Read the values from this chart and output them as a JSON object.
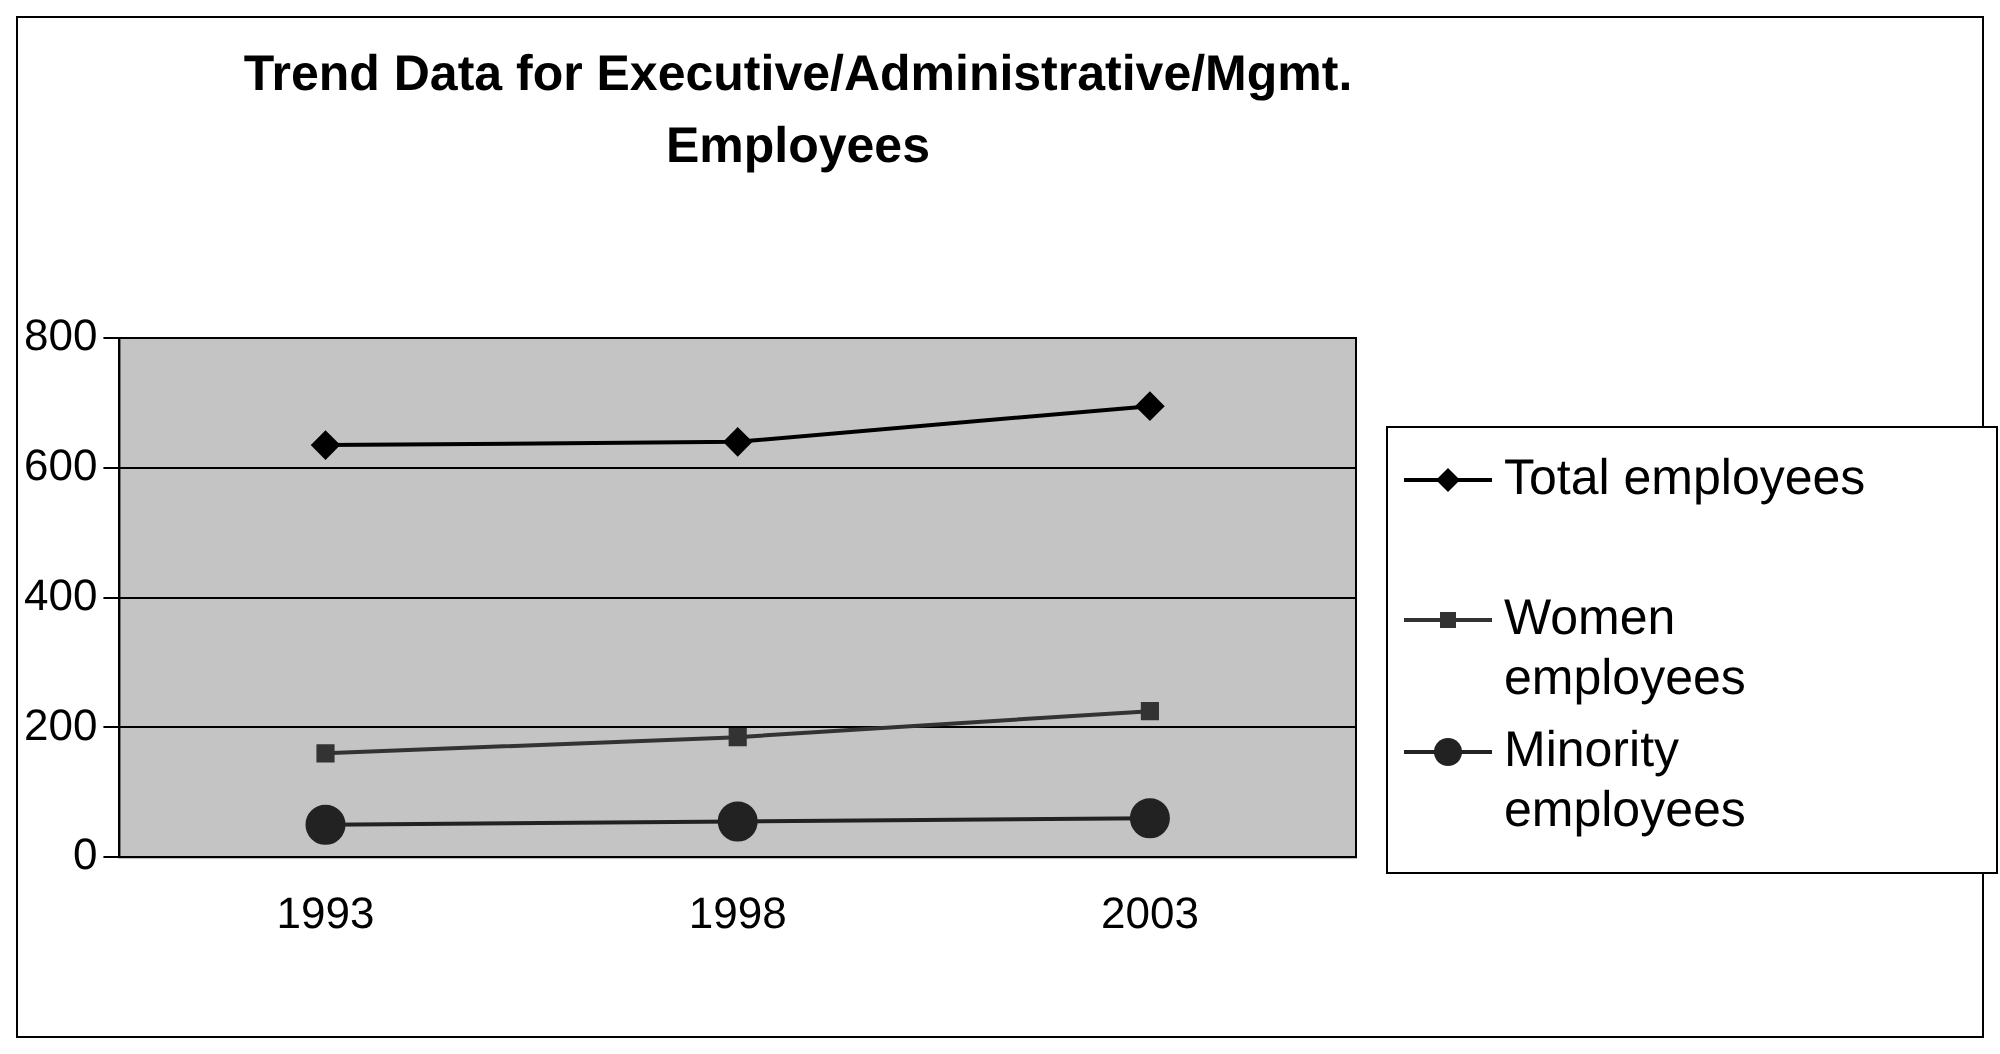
{
  "chart_data": {
    "type": "line",
    "title": "Trend Data for Executive/Administrative/Mgmt. Employees",
    "categories": [
      "1993",
      "1998",
      "2003"
    ],
    "series": [
      {
        "name": "Total employees",
        "color": "#000000",
        "marker": "diamond",
        "values": [
          635,
          640,
          695
        ]
      },
      {
        "name": "Women employees",
        "color": "#333333",
        "marker": "square",
        "values": [
          160,
          185,
          225
        ]
      },
      {
        "name": "Minority employees",
        "color": "#222222",
        "marker": "circle",
        "values": [
          50,
          55,
          60
        ]
      }
    ],
    "ylim": [
      0,
      800
    ],
    "yticks": [
      0,
      200,
      400,
      600,
      800
    ],
    "grid": "y",
    "legend": "right"
  }
}
